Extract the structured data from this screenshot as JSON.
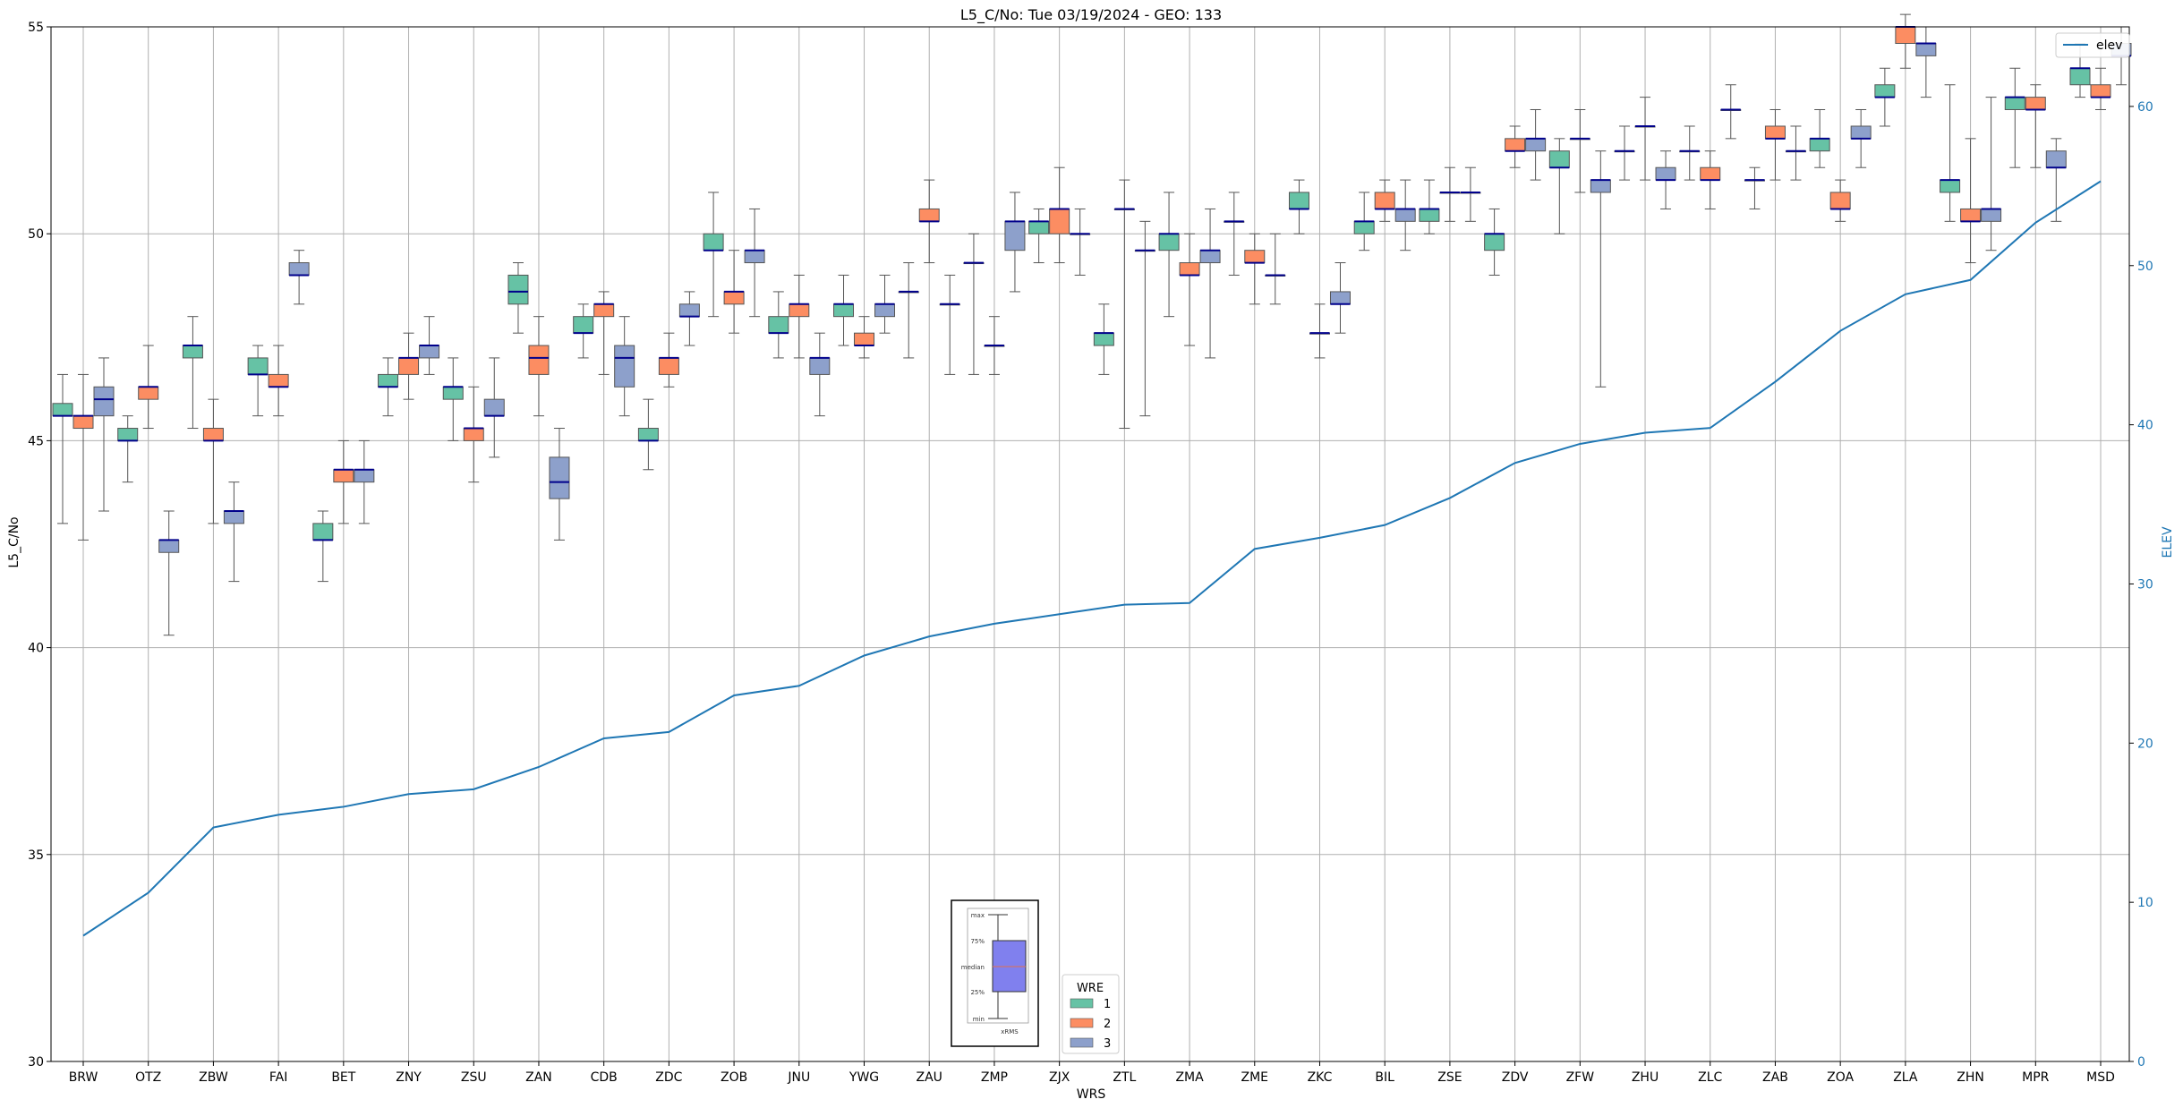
{
  "chart_data": {
    "type": "box",
    "title": "L5_C/No: Tue 03/19/2024 - GEO: 133",
    "xlabel": "WRS",
    "ylabel": "L5_C/No",
    "y2label": "ELEV",
    "ylim": [
      30,
      55
    ],
    "y2lim": [
      0,
      65
    ],
    "yticks": [
      30,
      35,
      40,
      45,
      50,
      55
    ],
    "y2ticks": [
      0,
      10,
      20,
      30,
      40,
      50,
      60
    ],
    "grid": true,
    "categories": [
      "BRW",
      "OTZ",
      "ZBW",
      "FAI",
      "BET",
      "ZNY",
      "ZSU",
      "ZAN",
      "CDB",
      "ZDC",
      "ZOB",
      "JNU",
      "YWG",
      "ZAU",
      "ZMP",
      "ZJX",
      "ZTL",
      "ZMA",
      "ZME",
      "ZKC",
      "BIL",
      "ZSE",
      "ZDV",
      "ZFW",
      "ZHU",
      "ZLC",
      "ZAB",
      "ZOA",
      "ZLA",
      "ZHN",
      "MPR",
      "MSD"
    ],
    "series": [
      {
        "name": "1",
        "color": "#66c2a5",
        "boxes": [
          [
            43.0,
            45.6,
            45.6,
            45.9,
            46.6
          ],
          [
            44.0,
            45.0,
            45.0,
            45.3,
            45.6
          ],
          [
            45.3,
            47.0,
            47.3,
            47.3,
            48.0
          ],
          [
            45.6,
            46.6,
            46.6,
            47.0,
            47.3
          ],
          [
            41.6,
            42.6,
            42.6,
            43.0,
            43.3
          ],
          [
            45.6,
            46.3,
            46.3,
            46.6,
            47.0
          ],
          [
            45.0,
            46.0,
            46.3,
            46.3,
            47.0
          ],
          [
            47.6,
            48.3,
            48.6,
            49.0,
            49.3
          ],
          [
            47.0,
            47.6,
            47.6,
            48.0,
            48.3
          ],
          [
            44.3,
            45.0,
            45.0,
            45.3,
            46.0
          ],
          [
            48.0,
            49.6,
            49.6,
            50.0,
            51.0
          ],
          [
            47.0,
            47.6,
            47.6,
            48.0,
            48.6
          ],
          [
            47.3,
            48.0,
            48.3,
            48.3,
            49.0
          ],
          [
            47.0,
            48.6,
            48.6,
            48.6,
            49.3
          ],
          [
            46.6,
            49.3,
            49.3,
            49.3,
            50.0
          ],
          [
            49.3,
            50.0,
            50.3,
            50.3,
            50.6
          ],
          [
            46.6,
            47.3,
            47.6,
            47.6,
            48.3
          ],
          [
            48.0,
            49.6,
            50.0,
            50.0,
            51.0
          ],
          [
            49.0,
            50.3,
            50.3,
            50.3,
            51.0
          ],
          [
            50.0,
            50.6,
            50.6,
            51.0,
            51.3
          ],
          [
            49.6,
            50.0,
            50.3,
            50.3,
            51.0
          ],
          [
            50.0,
            50.3,
            50.6,
            50.6,
            51.3
          ],
          [
            49.0,
            49.6,
            50.0,
            50.0,
            50.6
          ],
          [
            50.0,
            51.6,
            51.6,
            52.0,
            52.3
          ],
          [
            51.3,
            52.0,
            52.0,
            52.0,
            52.6
          ],
          [
            51.3,
            52.0,
            52.0,
            52.0,
            52.6
          ],
          [
            50.6,
            51.3,
            51.3,
            51.3,
            51.6
          ],
          [
            51.6,
            52.0,
            52.3,
            52.3,
            53.0
          ],
          [
            52.6,
            53.3,
            53.3,
            53.6,
            54.0
          ],
          [
            50.3,
            51.0,
            51.3,
            51.3,
            53.6
          ],
          [
            51.6,
            53.0,
            53.3,
            53.3,
            54.0
          ],
          [
            53.3,
            53.6,
            54.0,
            54.0,
            54.6
          ]
        ]
      },
      {
        "name": "2",
        "color": "#fc8d62",
        "boxes": [
          [
            42.6,
            45.3,
            45.6,
            45.6,
            46.6
          ],
          [
            45.3,
            46.0,
            46.3,
            46.3,
            47.3
          ],
          [
            43.0,
            45.0,
            45.0,
            45.3,
            46.0
          ],
          [
            45.6,
            46.3,
            46.3,
            46.6,
            47.3
          ],
          [
            43.0,
            44.0,
            44.3,
            44.3,
            45.0
          ],
          [
            46.0,
            46.6,
            47.0,
            47.0,
            47.6
          ],
          [
            44.0,
            45.0,
            45.3,
            45.3,
            46.3
          ],
          [
            45.6,
            46.6,
            47.0,
            47.3,
            48.0
          ],
          [
            46.6,
            48.0,
            48.3,
            48.3,
            48.6
          ],
          [
            46.3,
            46.6,
            47.0,
            47.0,
            47.6
          ],
          [
            47.6,
            48.3,
            48.6,
            48.6,
            49.6
          ],
          [
            47.0,
            48.0,
            48.3,
            48.3,
            49.0
          ],
          [
            47.0,
            47.3,
            47.3,
            47.6,
            48.0
          ],
          [
            49.3,
            50.3,
            50.3,
            50.6,
            51.3
          ],
          [
            46.6,
            47.3,
            47.3,
            47.3,
            48.0
          ],
          [
            49.3,
            50.0,
            50.6,
            50.6,
            51.6
          ],
          [
            45.3,
            50.6,
            50.6,
            50.6,
            51.3
          ],
          [
            47.3,
            49.0,
            49.0,
            49.3,
            50.0
          ],
          [
            48.3,
            49.3,
            49.3,
            49.6,
            50.0
          ],
          [
            47.0,
            47.6,
            47.6,
            47.6,
            48.3
          ],
          [
            50.3,
            50.6,
            50.6,
            51.0,
            51.3
          ],
          [
            50.3,
            51.0,
            51.0,
            51.0,
            51.6
          ],
          [
            51.6,
            52.0,
            52.0,
            52.3,
            52.6
          ],
          [
            51.0,
            52.3,
            52.3,
            52.3,
            53.0
          ],
          [
            51.3,
            52.6,
            52.6,
            52.6,
            53.3
          ],
          [
            50.6,
            51.3,
            51.3,
            51.6,
            52.0
          ],
          [
            51.3,
            52.3,
            52.3,
            52.6,
            53.0
          ],
          [
            50.3,
            50.6,
            50.6,
            51.0,
            51.3
          ],
          [
            54.0,
            54.6,
            55.0,
            55.0,
            55.3
          ],
          [
            49.3,
            50.3,
            50.3,
            50.6,
            52.3
          ],
          [
            51.6,
            53.0,
            53.0,
            53.3,
            53.6
          ],
          [
            53.0,
            53.3,
            53.3,
            53.6,
            54.0
          ]
        ]
      },
      {
        "name": "3",
        "color": "#8da0cb",
        "boxes": [
          [
            43.3,
            45.6,
            46.0,
            46.3,
            47.0
          ],
          [
            40.3,
            42.3,
            42.6,
            42.6,
            43.3
          ],
          [
            41.6,
            43.0,
            43.3,
            43.3,
            44.0
          ],
          [
            48.3,
            49.0,
            49.0,
            49.3,
            49.6
          ],
          [
            43.0,
            44.0,
            44.3,
            44.3,
            45.0
          ],
          [
            46.6,
            47.0,
            47.3,
            47.3,
            48.0
          ],
          [
            44.6,
            45.6,
            45.6,
            46.0,
            47.0
          ],
          [
            42.6,
            43.6,
            44.0,
            44.6,
            45.3
          ],
          [
            45.6,
            46.3,
            47.0,
            47.3,
            48.0
          ],
          [
            47.3,
            48.0,
            48.0,
            48.3,
            48.6
          ],
          [
            48.0,
            49.3,
            49.6,
            49.6,
            50.6
          ],
          [
            45.6,
            46.6,
            47.0,
            47.0,
            47.6
          ],
          [
            47.6,
            48.0,
            48.3,
            48.3,
            49.0
          ],
          [
            46.6,
            48.3,
            48.3,
            48.3,
            49.0
          ],
          [
            48.6,
            49.6,
            50.3,
            50.3,
            51.0
          ],
          [
            49.0,
            50.0,
            50.0,
            50.0,
            50.6
          ],
          [
            45.6,
            49.6,
            49.6,
            49.6,
            50.3
          ],
          [
            47.0,
            49.3,
            49.6,
            49.6,
            50.6
          ],
          [
            48.3,
            49.0,
            49.0,
            49.0,
            50.0
          ],
          [
            47.6,
            48.3,
            48.3,
            48.6,
            49.3
          ],
          [
            49.6,
            50.3,
            50.6,
            50.6,
            51.3
          ],
          [
            50.3,
            51.0,
            51.0,
            51.0,
            51.6
          ],
          [
            51.3,
            52.0,
            52.3,
            52.3,
            53.0
          ],
          [
            46.3,
            51.0,
            51.3,
            51.3,
            52.0
          ],
          [
            50.6,
            51.3,
            51.3,
            51.6,
            52.0
          ],
          [
            52.3,
            53.0,
            53.0,
            53.0,
            53.6
          ],
          [
            51.3,
            52.0,
            52.0,
            52.0,
            52.6
          ],
          [
            51.6,
            52.3,
            52.3,
            52.6,
            53.0
          ],
          [
            53.3,
            54.3,
            54.6,
            54.6,
            55.0
          ],
          [
            49.6,
            50.3,
            50.6,
            50.6,
            53.3
          ],
          [
            50.3,
            51.6,
            51.6,
            52.0,
            52.3
          ],
          [
            53.6,
            54.3,
            54.3,
            54.6,
            55.0
          ]
        ]
      }
    ],
    "elev": {
      "name": "elev",
      "color": "#1f77b4",
      "values": [
        7.9,
        10.6,
        14.7,
        15.5,
        16.0,
        16.8,
        17.1,
        18.5,
        20.3,
        20.7,
        23.0,
        23.6,
        25.5,
        26.7,
        27.5,
        28.1,
        28.7,
        28.8,
        32.2,
        32.9,
        33.7,
        35.4,
        37.6,
        38.8,
        39.5,
        39.8,
        42.7,
        45.9,
        48.2,
        49.1,
        52.7,
        55.3
      ]
    },
    "legend": {
      "title": "WRE",
      "labels": [
        "1",
        "2",
        "3"
      ],
      "placement": "bottom-center"
    },
    "elev_legend_placement": "top-right",
    "key_legend": {
      "labels": [
        "max",
        "75%",
        "median",
        "25%",
        "min"
      ],
      "xlabel": "xRMS"
    }
  }
}
